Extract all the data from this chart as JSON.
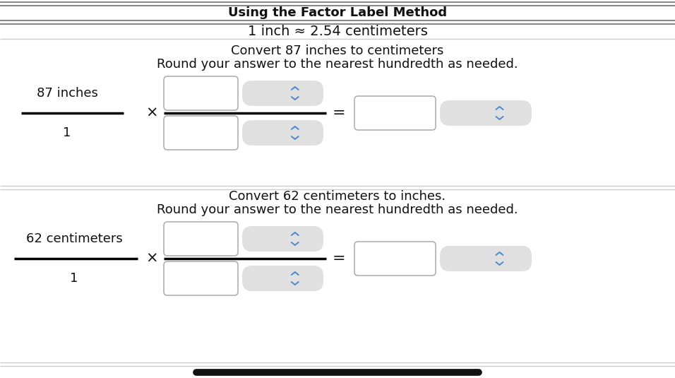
{
  "title": "Using the Factor Label Method",
  "subtitle": "1 inch ≈ 2.54 centimeters",
  "section1_line1": "Convert 87 inches to centimeters",
  "section1_line2": "Round your answer to the nearest hundredth as needed.",
  "section1_label_num": "87 inches",
  "section1_label_den": "1",
  "section2_line1": "Convert 62 centimeters to inches.",
  "section2_line2": "Round your answer to the nearest hundredth as needed.",
  "section2_label_num": "62 centimeters",
  "section2_label_den": "1",
  "bg_color": "#ffffff",
  "box_fill": "#ffffff",
  "box_edge": "#aaaaaa",
  "dropdown_fill": "#e0e0e0",
  "arrow_color": "#4d88cc",
  "text_color": "#111111",
  "title_fontsize": 13,
  "body_fontsize": 12,
  "label_fontsize": 12,
  "bottom_bar_color": "#111111",
  "divider_dark": "#888888",
  "divider_light": "#cccccc"
}
